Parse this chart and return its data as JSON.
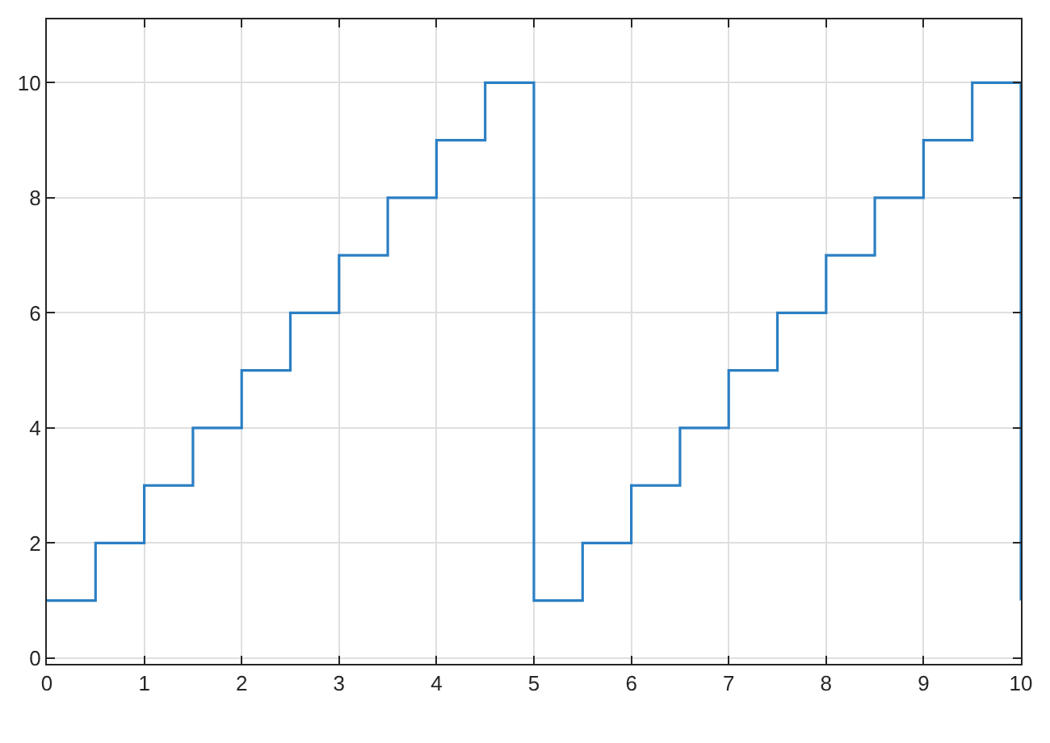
{
  "chart_data": {
    "type": "step",
    "x": [
      0,
      0.5,
      1,
      1.5,
      2,
      2.5,
      3,
      3.5,
      4,
      4.5,
      5,
      5.5,
      6,
      6.5,
      7,
      7.5,
      8,
      8.5,
      9,
      9.5,
      10
    ],
    "series": [
      {
        "color": "#2b7fc4",
        "values": [
          1,
          2,
          3,
          4,
          5,
          6,
          7,
          8,
          9,
          10,
          1,
          2,
          3,
          4,
          5,
          6,
          7,
          8,
          9,
          10,
          1
        ]
      }
    ],
    "xlim": [
      0,
      10
    ],
    "ylim": [
      -0.1,
      11.1
    ],
    "xticks": [
      0,
      1,
      2,
      3,
      4,
      5,
      6,
      7,
      8,
      9,
      10
    ],
    "yticks": [
      0,
      2,
      4,
      6,
      8,
      10
    ],
    "grid": true
  }
}
